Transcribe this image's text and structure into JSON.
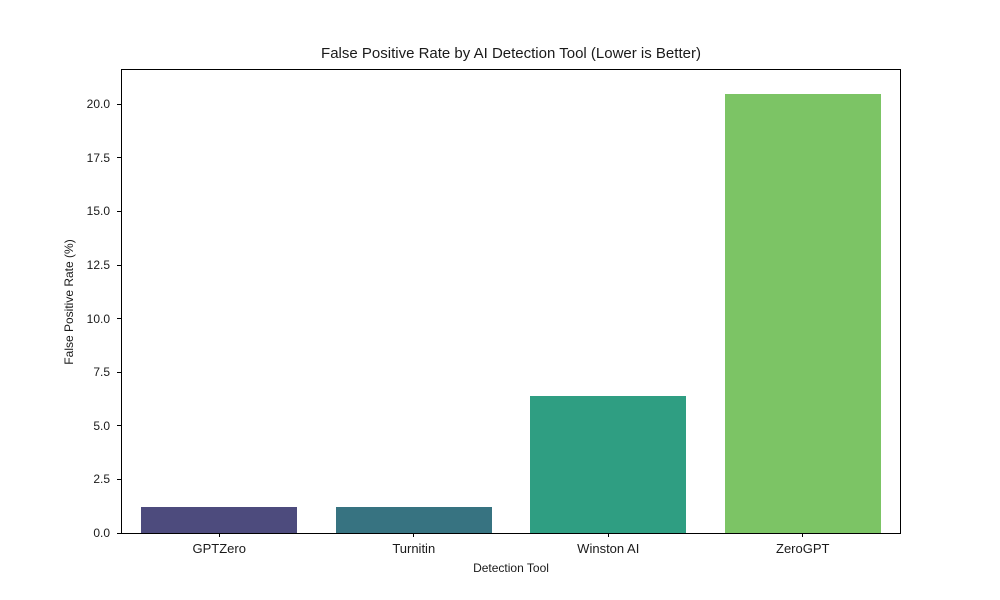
{
  "page": {
    "background_color": "#ffffff",
    "text_color": "#1a1a1a",
    "spine_color": "#000000"
  },
  "chart_data": {
    "type": "bar",
    "title": "False Positive Rate by AI Detection Tool (Lower is Better)",
    "xlabel": "Detection Tool",
    "ylabel": "False Positive Rate (%)",
    "categories": [
      "GPTZero",
      "Turnitin",
      "Winston AI",
      "ZeroGPT"
    ],
    "values": [
      1.2,
      1.2,
      6.4,
      20.5
    ],
    "bar_colors": [
      "#4d4b7d",
      "#377381",
      "#2f9e82",
      "#7cc465"
    ],
    "ylim": [
      0,
      21.6
    ],
    "yticks": [
      0.0,
      2.5,
      5.0,
      7.5,
      10.0,
      12.5,
      15.0,
      17.5,
      20.0
    ],
    "ytick_labels": [
      "0.0",
      "2.5",
      "5.0",
      "7.5",
      "10.0",
      "12.5",
      "15.0",
      "17.5",
      "20.0"
    ],
    "bar_width_fraction": 0.8,
    "grid": false,
    "legend": null
  }
}
